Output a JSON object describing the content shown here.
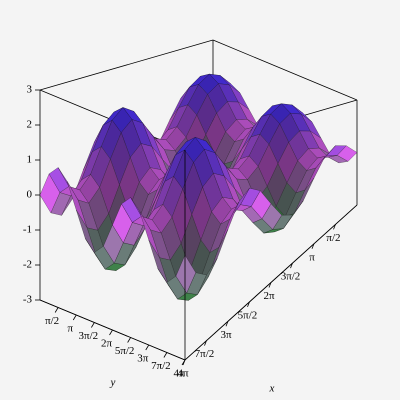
{
  "chart_data": {
    "type": "surface3d",
    "x": [
      0,
      0.785,
      1.571,
      2.356,
      3.142,
      3.927,
      4.712,
      5.498,
      6.283,
      7.069,
      7.854,
      8.639,
      9.425,
      10.21,
      10.996,
      11.781,
      12.566
    ],
    "y": [
      0,
      0.785,
      1.571,
      2.356,
      3.142,
      3.927,
      4.712,
      5.498,
      6.283,
      7.069,
      7.854,
      8.639,
      9.425,
      10.21,
      10.996,
      11.781,
      12.566
    ],
    "z": [
      [
        0,
        0.71,
        1,
        0.71,
        0,
        -0.71,
        -1,
        -0.71,
        0,
        0.71,
        1,
        0.71,
        0,
        -0.71,
        -1,
        -0.71,
        0
      ],
      [
        0.71,
        1.42,
        1.71,
        1.42,
        0.71,
        0,
        -0.29,
        0,
        0.71,
        1.42,
        1.71,
        1.42,
        0.71,
        0,
        -0.29,
        0,
        0.71
      ],
      [
        1,
        1.71,
        2,
        1.71,
        1,
        0.29,
        0,
        0.29,
        1,
        1.71,
        2,
        1.71,
        1,
        0.29,
        0,
        0.29,
        1
      ],
      [
        0.71,
        1.42,
        1.71,
        1.42,
        0.71,
        0,
        -0.29,
        0,
        0.71,
        1.42,
        1.71,
        1.42,
        0.71,
        0,
        -0.29,
        0,
        0.71
      ],
      [
        0,
        0.71,
        1,
        0.71,
        0,
        -0.71,
        -1,
        -0.71,
        0,
        0.71,
        1,
        0.71,
        0,
        -0.71,
        -1,
        -0.71,
        0
      ],
      [
        -0.71,
        0,
        0.29,
        0,
        -0.71,
        -1.42,
        -1.71,
        -1.42,
        -0.71,
        0,
        0.29,
        0,
        -0.71,
        -1.42,
        -1.71,
        -1.42,
        -0.71
      ],
      [
        -1,
        -0.29,
        0,
        -0.29,
        -1,
        -1.71,
        -2,
        -1.71,
        -1,
        -0.29,
        0,
        -0.29,
        -1,
        -1.71,
        -2,
        -1.71,
        -1
      ],
      [
        -0.71,
        0,
        0.29,
        0,
        -0.71,
        -1.42,
        -1.71,
        -1.42,
        -0.71,
        0,
        0.29,
        0,
        -0.71,
        -1.42,
        -1.71,
        -1.42,
        -0.71
      ],
      [
        0,
        0.71,
        1,
        0.71,
        0,
        -0.71,
        -1,
        -0.71,
        0,
        0.71,
        1,
        0.71,
        0,
        -0.71,
        -1,
        -0.71,
        0
      ],
      [
        0.71,
        1.42,
        1.71,
        1.42,
        0.71,
        0,
        -0.29,
        0,
        0.71,
        1.42,
        1.71,
        1.42,
        0.71,
        0,
        -0.29,
        0,
        0.71
      ],
      [
        1,
        1.71,
        2,
        1.71,
        1,
        0.29,
        0,
        0.29,
        1,
        1.71,
        2,
        1.71,
        1,
        0.29,
        0,
        0.29,
        1
      ],
      [
        0.71,
        1.42,
        1.71,
        1.42,
        0.71,
        0,
        -0.29,
        0,
        0.71,
        1.42,
        1.71,
        1.42,
        0.71,
        0,
        -0.29,
        0,
        0.71
      ],
      [
        0,
        0.71,
        1,
        0.71,
        0,
        -0.71,
        -1,
        -0.71,
        0,
        0.71,
        1,
        0.71,
        0,
        -0.71,
        -1,
        -0.71,
        0
      ],
      [
        -0.71,
        0,
        0.29,
        0,
        -0.71,
        -1.42,
        -1.71,
        -1.42,
        -0.71,
        0,
        0.29,
        0,
        -0.71,
        -1.42,
        -1.71,
        -1.42,
        -0.71
      ],
      [
        -1,
        -0.29,
        0,
        -0.29,
        -1,
        -1.71,
        -2,
        -1.71,
        -1,
        -0.29,
        0,
        -0.29,
        -1,
        -1.71,
        -2,
        -1.71,
        -1
      ],
      [
        -0.71,
        0,
        0.29,
        0,
        -0.71,
        -1.42,
        -1.71,
        -1.42,
        -0.71,
        0,
        0.29,
        0,
        -0.71,
        -1.42,
        -1.71,
        -1.42,
        -0.71
      ],
      [
        0,
        0.71,
        1,
        0.71,
        0,
        -0.71,
        -1,
        -0.71,
        0,
        0.71,
        1,
        0.71,
        0,
        -0.71,
        -1,
        -0.71,
        0
      ]
    ],
    "xlim": [
      0,
      12.566
    ],
    "ylim": [
      0,
      12.566
    ],
    "zlim": [
      -3,
      3
    ],
    "zticks": [
      -3,
      -2,
      -1,
      0,
      1,
      2,
      3
    ],
    "xticks": [
      {
        "value": 1.571,
        "label": "π/2"
      },
      {
        "value": 3.142,
        "label": "π"
      },
      {
        "value": 4.712,
        "label": "3π/2"
      },
      {
        "value": 6.283,
        "label": "2π"
      },
      {
        "value": 7.854,
        "label": "5π/2"
      },
      {
        "value": 9.425,
        "label": "3π"
      },
      {
        "value": 10.996,
        "label": "7π/2"
      },
      {
        "value": 12.566,
        "label": "4π"
      }
    ],
    "yticks": [
      {
        "value": 1.571,
        "label": "π/2"
      },
      {
        "value": 3.142,
        "label": "π"
      },
      {
        "value": 4.712,
        "label": "3π/2"
      },
      {
        "value": 6.283,
        "label": "2π"
      },
      {
        "value": 7.854,
        "label": "5π/2"
      },
      {
        "value": 9.425,
        "label": "3π"
      },
      {
        "value": 10.996,
        "label": "7π/2"
      },
      {
        "value": 12.566,
        "label": "4π"
      }
    ],
    "xlabel": "x",
    "ylabel": "y",
    "colors": {
      "high": "#3a2cff",
      "mid": "#d25ee6",
      "low": "#2f9a3a"
    }
  }
}
